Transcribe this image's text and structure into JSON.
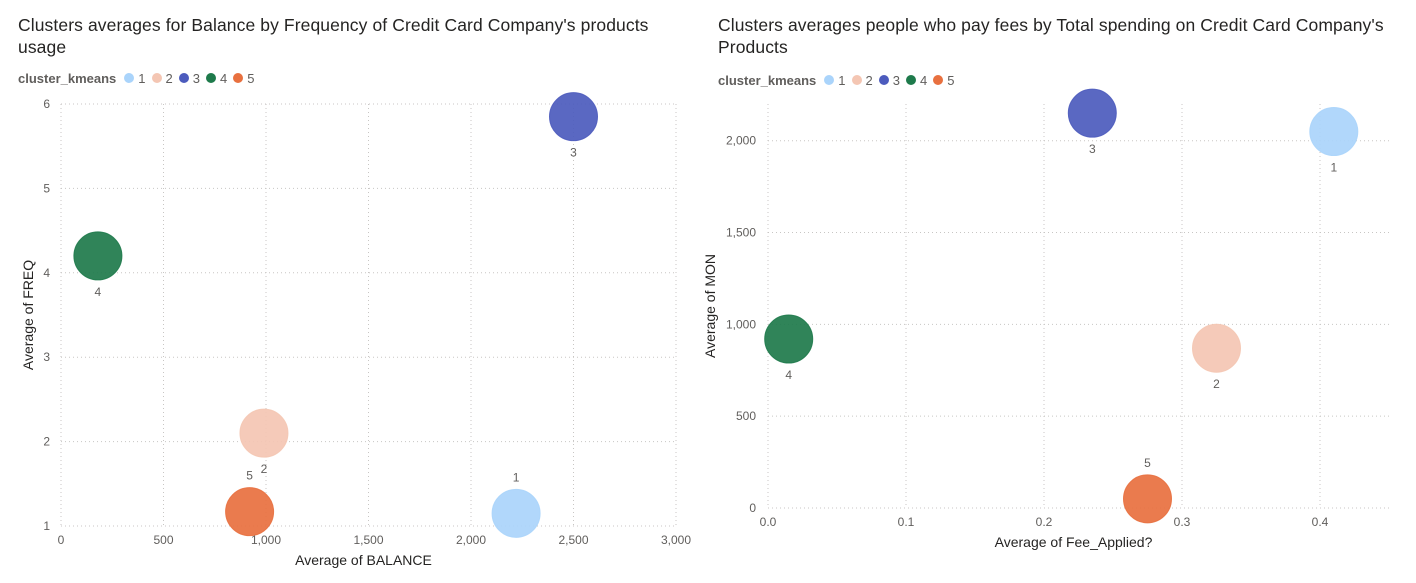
{
  "charts": [
    {
      "title": "Clusters averages for Balance by Frequency of Credit Card Company's products usage",
      "legend": {
        "title": "cluster_kmeans",
        "items": [
          {
            "label": "1",
            "color": "#aad4fb"
          },
          {
            "label": "2",
            "color": "#f4c6b3"
          },
          {
            "label": "3",
            "color": "#4c5bbd"
          },
          {
            "label": "4",
            "color": "#1e7a4b"
          },
          {
            "label": "5",
            "color": "#e8703f"
          }
        ]
      }
    },
    {
      "title": "Clusters averages people who pay fees by Total spending on Credit Card Company's Products",
      "legend": {
        "title": "cluster_kmeans",
        "items": [
          {
            "label": "1",
            "color": "#aad4fb"
          },
          {
            "label": "2",
            "color": "#f4c6b3"
          },
          {
            "label": "3",
            "color": "#4c5bbd"
          },
          {
            "label": "4",
            "color": "#1e7a4b"
          },
          {
            "label": "5",
            "color": "#e8703f"
          }
        ]
      }
    }
  ],
  "chart_data": [
    {
      "type": "scatter",
      "title": "Clusters averages for Balance by Frequency of Credit Card Company's products usage",
      "xlabel": "Average of BALANCE",
      "ylabel": "Average of FREQ",
      "xlim": [
        0,
        3000
      ],
      "ylim": [
        1,
        6
      ],
      "x_ticks": [
        0,
        500,
        1000,
        1500,
        2000,
        2500,
        3000
      ],
      "x_tick_labels": [
        "0",
        "500",
        "1,000",
        "1,500",
        "2,000",
        "2,500",
        "3,000"
      ],
      "y_ticks": [
        1,
        2,
        3,
        4,
        5,
        6
      ],
      "y_tick_labels": [
        "1",
        "2",
        "3",
        "4",
        "5",
        "6"
      ],
      "grid": true,
      "legend_placement": "top-left",
      "points": [
        {
          "cluster": "1",
          "x": 2220,
          "y": 1.15,
          "color": "#aad4fb",
          "label_pos": "above"
        },
        {
          "cluster": "2",
          "x": 990,
          "y": 2.1,
          "color": "#f4c6b3",
          "label_pos": "below"
        },
        {
          "cluster": "3",
          "x": 2500,
          "y": 5.85,
          "color": "#4c5bbd",
          "label_pos": "below"
        },
        {
          "cluster": "4",
          "x": 180,
          "y": 4.2,
          "color": "#1e7a4b",
          "label_pos": "below"
        },
        {
          "cluster": "5",
          "x": 920,
          "y": 1.17,
          "color": "#e8703f",
          "label_pos": "above"
        }
      ]
    },
    {
      "type": "scatter",
      "title": "Clusters averages people who pay fees by Total spending on Credit Card Company's Products",
      "xlabel": "Average of Fee_Applied?",
      "ylabel": "Average of MON",
      "xlim": [
        0,
        0.45
      ],
      "ylim": [
        0,
        2200
      ],
      "x_ticks": [
        0,
        0.1,
        0.2,
        0.3,
        0.4
      ],
      "x_tick_labels": [
        "0.0",
        "0.1",
        "0.2",
        "0.3",
        "0.4"
      ],
      "y_ticks": [
        0,
        500,
        1000,
        1500,
        2000
      ],
      "y_tick_labels": [
        "0",
        "500",
        "1,000",
        "1,500",
        "2,000"
      ],
      "grid": true,
      "legend_placement": "top-left",
      "points": [
        {
          "cluster": "1",
          "x": 0.41,
          "y": 2050,
          "color": "#aad4fb",
          "label_pos": "below"
        },
        {
          "cluster": "2",
          "x": 0.325,
          "y": 870,
          "color": "#f4c6b3",
          "label_pos": "below"
        },
        {
          "cluster": "3",
          "x": 0.235,
          "y": 2150,
          "color": "#4c5bbd",
          "label_pos": "below"
        },
        {
          "cluster": "4",
          "x": 0.015,
          "y": 920,
          "color": "#1e7a4b",
          "label_pos": "below"
        },
        {
          "cluster": "5",
          "x": 0.275,
          "y": 50,
          "color": "#e8703f",
          "label_pos": "above"
        }
      ]
    }
  ]
}
